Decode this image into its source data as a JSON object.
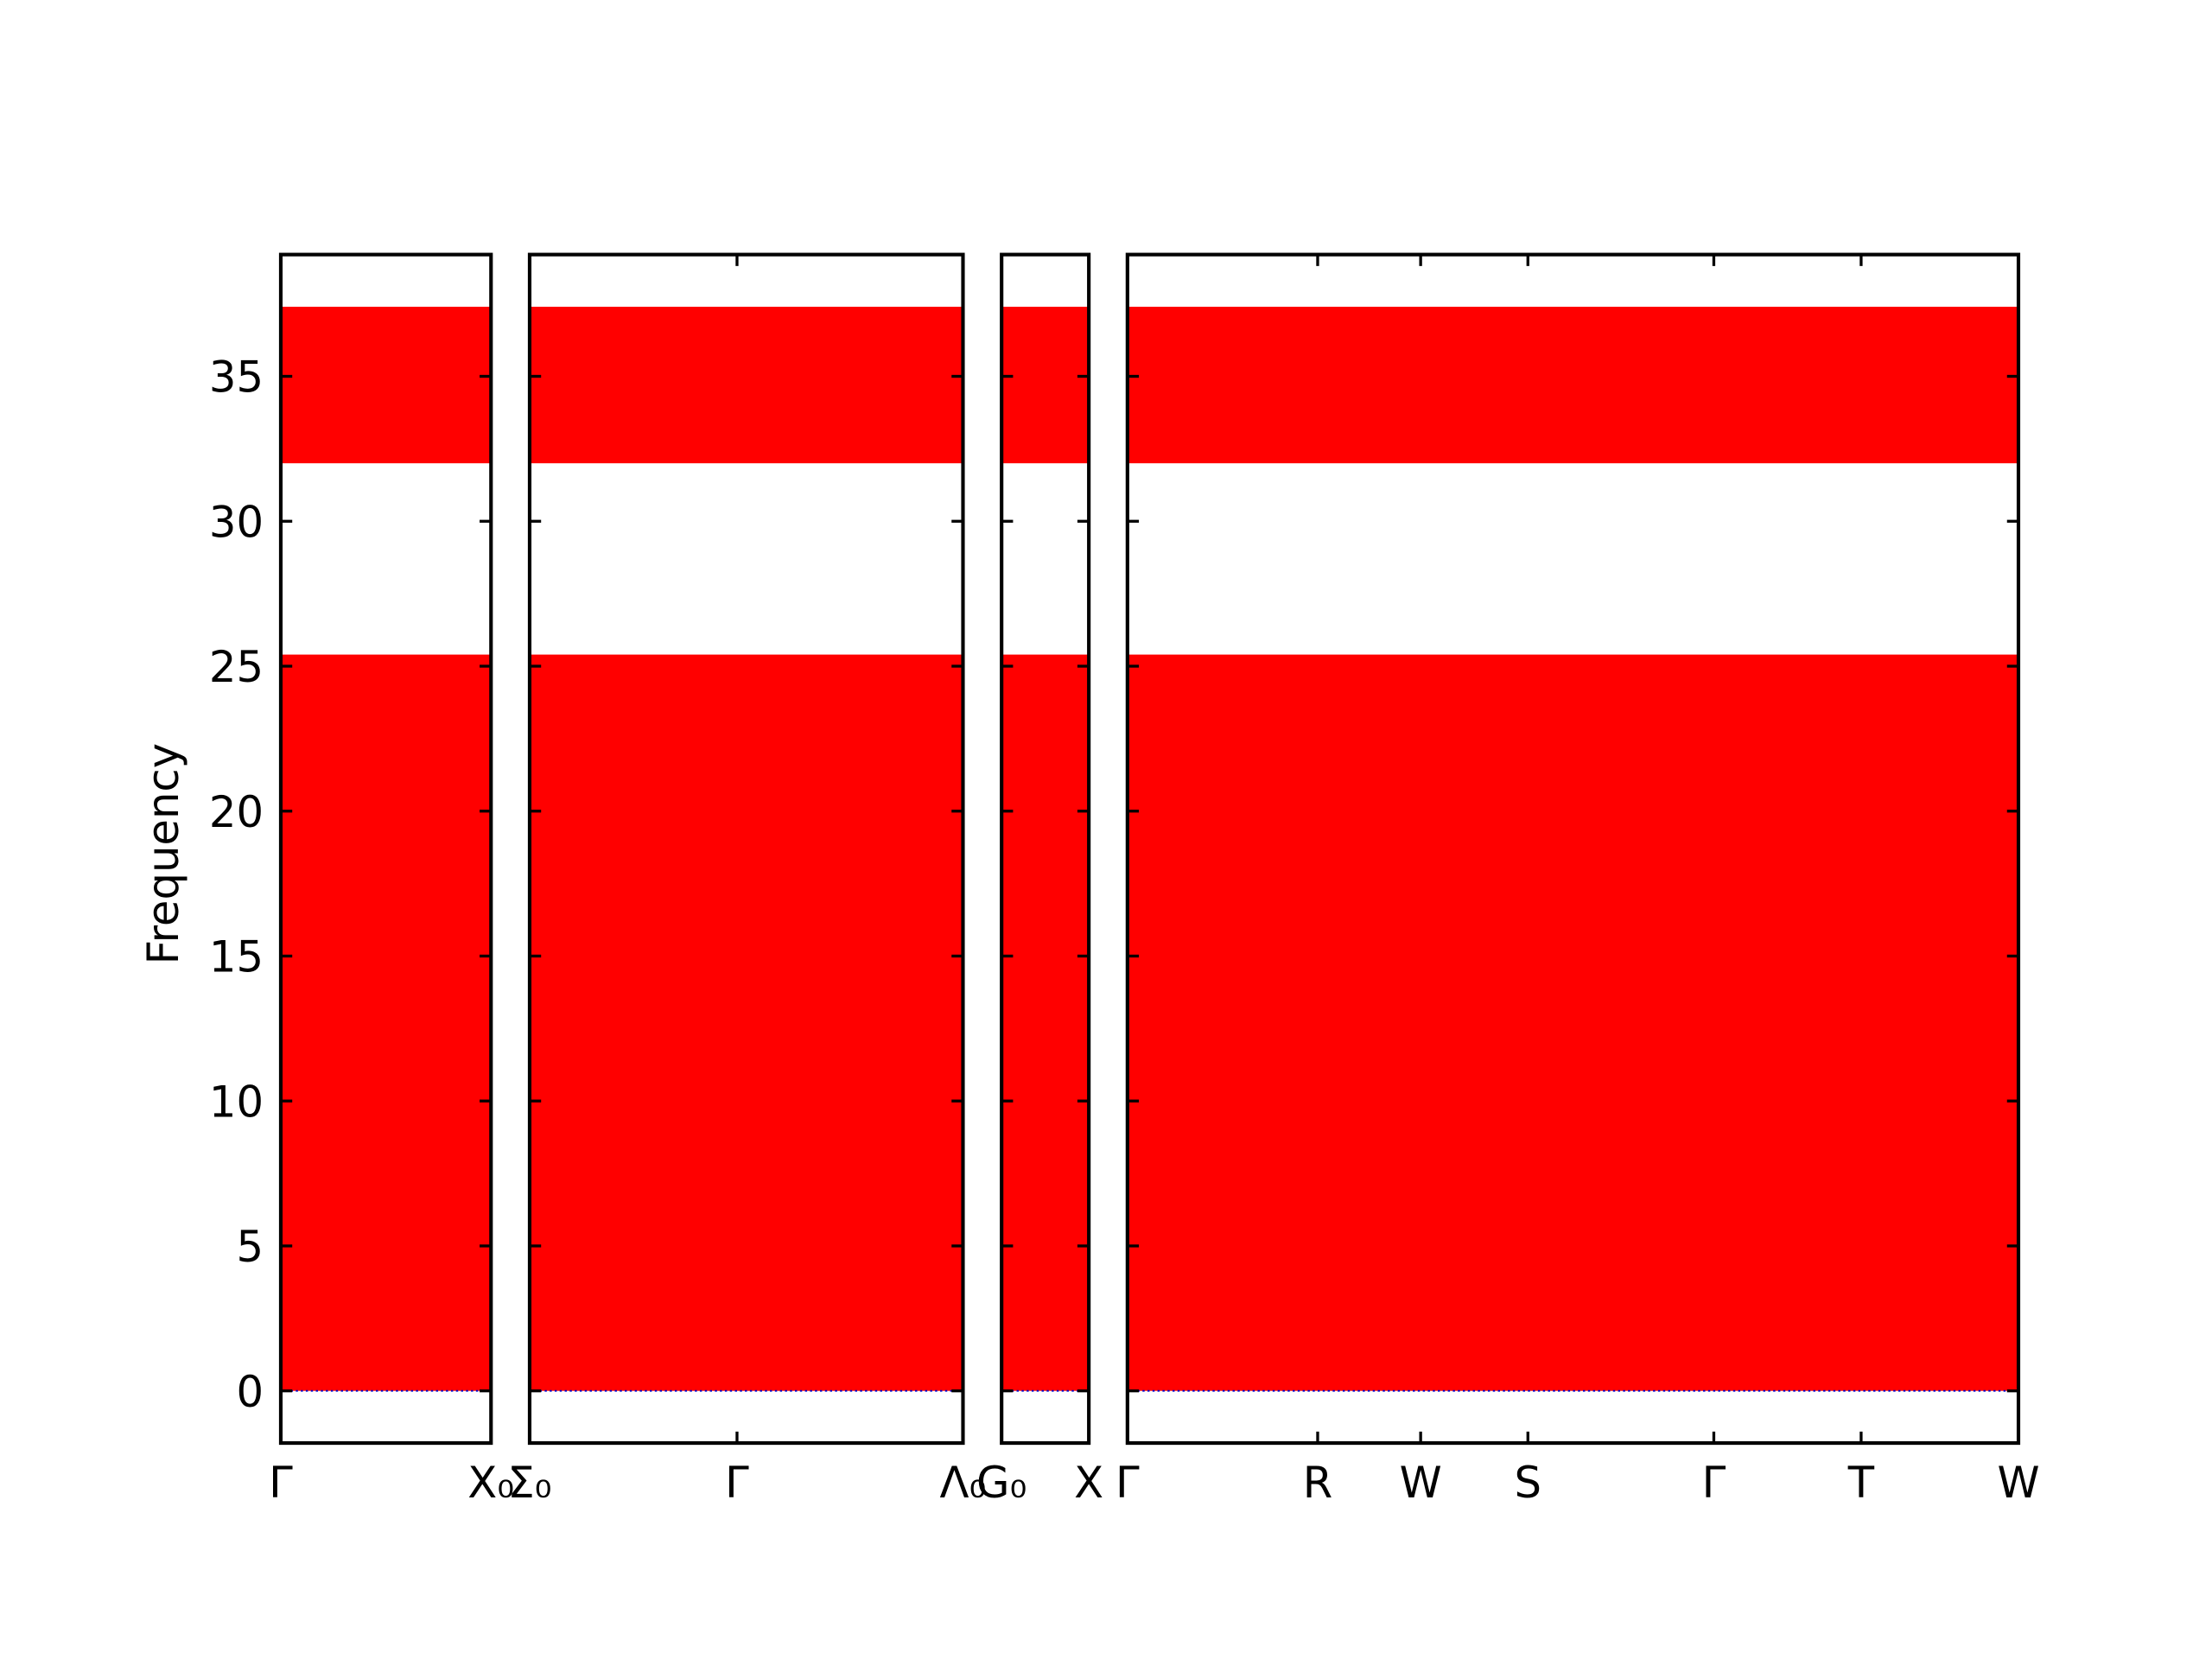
{
  "chart_data": {
    "type": "band",
    "ylabel": "Frequency",
    "ylim": [
      -1.8,
      39.2
    ],
    "yticks": [
      0,
      5,
      10,
      15,
      20,
      25,
      30,
      35
    ],
    "color": "#ff0000",
    "zero_line_color": "#0000cc",
    "bands": [
      [
        0,
        25.4
      ],
      [
        32,
        37.4
      ]
    ],
    "panels": [
      {
        "xlim": [
          0,
          1.47
        ],
        "xticks": [
          {
            "value": 0,
            "label": "Γ"
          },
          {
            "value": 1.47,
            "label": "X₀"
          }
        ]
      },
      {
        "xlim": [
          0,
          3.03
        ],
        "xticks": [
          {
            "value": 0,
            "label": "Σ₀"
          },
          {
            "value": 1.45,
            "label": "Γ"
          },
          {
            "value": 3.03,
            "label": "Λ₀"
          }
        ]
      },
      {
        "xlim": [
          0,
          0.61
        ],
        "xticks": [
          {
            "value": 0,
            "label": "G₀"
          },
          {
            "value": 0.61,
            "label": "X"
          }
        ]
      },
      {
        "xlim": [
          0,
          6.23
        ],
        "xticks": [
          {
            "value": 0,
            "label": "Γ"
          },
          {
            "value": 1.33,
            "label": "R"
          },
          {
            "value": 2.05,
            "label": "W"
          },
          {
            "value": 2.8,
            "label": "S"
          },
          {
            "value": 4.1,
            "label": "Γ"
          },
          {
            "value": 5.13,
            "label": "T"
          },
          {
            "value": 6.23,
            "label": "W"
          }
        ]
      }
    ]
  }
}
